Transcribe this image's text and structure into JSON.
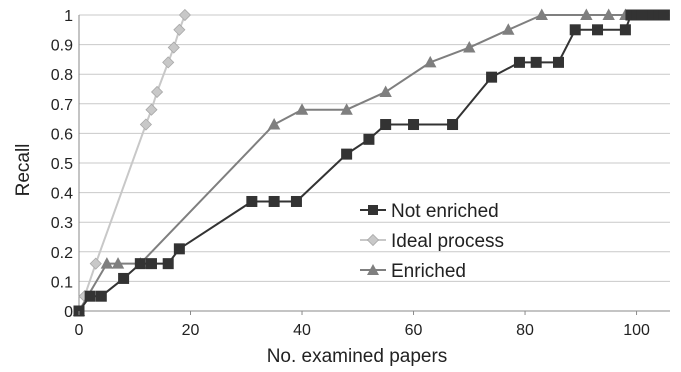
{
  "chart_data": {
    "type": "line",
    "title": "",
    "xlabel": "No. examined papers",
    "ylabel": "Recall",
    "xlim": [
      0,
      106
    ],
    "ylim": [
      0,
      1
    ],
    "x_ticks": [
      0,
      20,
      40,
      60,
      80,
      100
    ],
    "y_ticks": [
      0,
      0.1,
      0.2,
      0.3,
      0.4,
      0.5,
      0.6,
      0.7,
      0.8,
      0.9,
      1
    ],
    "y_tick_labels": [
      "0",
      "0.1",
      "0.2",
      "0.3",
      "0.4",
      "0.5",
      "0.6",
      "0.7",
      "0.8",
      "0.9",
      "1"
    ],
    "grid": "horizontal",
    "legend_position": "center-right",
    "series": [
      {
        "name": "Not enriched",
        "marker": "square",
        "color": "#333333",
        "marker_fill": "#333333",
        "points": [
          [
            0,
            0
          ],
          [
            2,
            0.05
          ],
          [
            4,
            0.05
          ],
          [
            8,
            0.11
          ],
          [
            11,
            0.16
          ],
          [
            13,
            0.16
          ],
          [
            16,
            0.16
          ],
          [
            18,
            0.21
          ],
          [
            31,
            0.37
          ],
          [
            35,
            0.37
          ],
          [
            39,
            0.37
          ],
          [
            48,
            0.53
          ],
          [
            52,
            0.58
          ],
          [
            55,
            0.63
          ],
          [
            60,
            0.63
          ],
          [
            67,
            0.63
          ],
          [
            74,
            0.79
          ],
          [
            79,
            0.84
          ],
          [
            82,
            0.84
          ],
          [
            86,
            0.84
          ],
          [
            89,
            0.95
          ],
          [
            93,
            0.95
          ],
          [
            98,
            0.95
          ],
          [
            99,
            1.0
          ],
          [
            100,
            1.0
          ],
          [
            101,
            1.0
          ],
          [
            102,
            1.0
          ],
          [
            103,
            1.0
          ],
          [
            104,
            1.0
          ],
          [
            105,
            1.0
          ]
        ]
      },
      {
        "name": "Ideal process",
        "marker": "diamond",
        "color": "#c8c8c8",
        "marker_fill": "#c8c8c8",
        "points": [
          [
            1,
            0.05
          ],
          [
            3,
            0.16
          ],
          [
            12,
            0.63
          ],
          [
            13,
            0.68
          ],
          [
            14,
            0.74
          ],
          [
            16,
            0.84
          ],
          [
            17,
            0.89
          ],
          [
            18,
            0.95
          ],
          [
            19,
            1.0
          ]
        ]
      },
      {
        "name": "Enriched",
        "marker": "triangle",
        "color": "#7f7f7f",
        "marker_fill": "#7f7f7f",
        "points": [
          [
            0,
            0
          ],
          [
            5,
            0.16
          ],
          [
            7,
            0.16
          ],
          [
            11,
            0.16
          ],
          [
            35,
            0.63
          ],
          [
            40,
            0.68
          ],
          [
            48,
            0.68
          ],
          [
            55,
            0.74
          ],
          [
            63,
            0.84
          ],
          [
            70,
            0.89
          ],
          [
            77,
            0.95
          ],
          [
            83,
            1.0
          ],
          [
            91,
            1.0
          ],
          [
            95,
            1.0
          ],
          [
            98,
            1.0
          ]
        ]
      }
    ]
  }
}
